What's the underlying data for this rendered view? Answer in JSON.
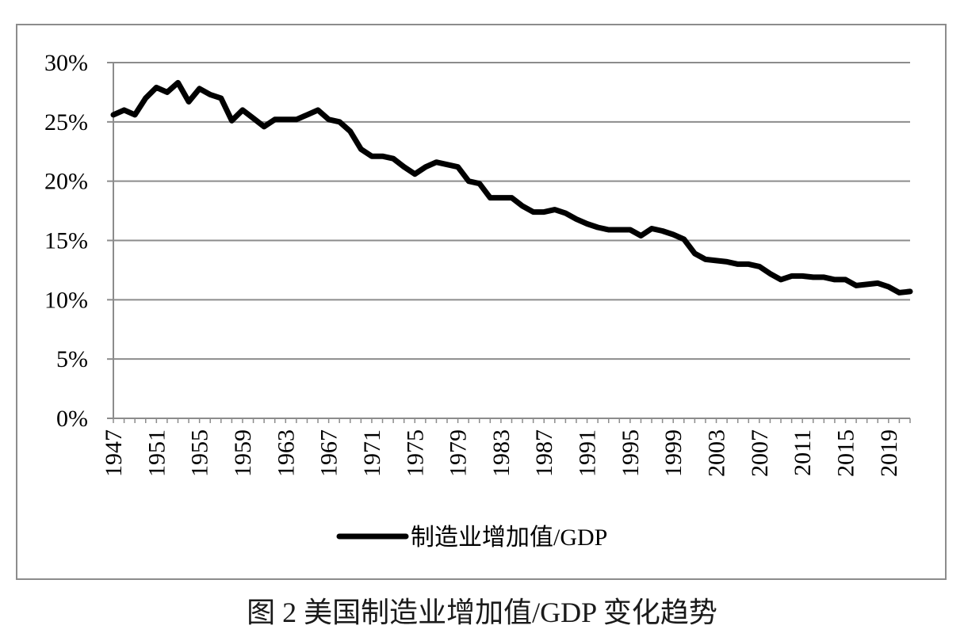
{
  "caption": "图 2  美国制造业增加值/GDP 变化趋势",
  "chart_data": {
    "type": "line",
    "title": "",
    "xlabel": "",
    "ylabel": "",
    "ylim": [
      0,
      30
    ],
    "y_ticks": [
      0,
      5,
      10,
      15,
      20,
      25,
      30
    ],
    "y_tick_labels": [
      "0%",
      "5%",
      "10%",
      "15%",
      "20%",
      "25%",
      "30%"
    ],
    "x_tick_labels": [
      "1947",
      "1951",
      "1955",
      "1959",
      "1963",
      "1967",
      "1971",
      "1975",
      "1979",
      "1983",
      "1987",
      "1991",
      "1995",
      "1999",
      "2003",
      "2007",
      "2011",
      "2015",
      "2019"
    ],
    "x_range": [
      1947,
      2021
    ],
    "grid": true,
    "legend_position": "bottom",
    "series": [
      {
        "name": "制造业增加值/GDP",
        "color": "#000000",
        "x": [
          1947,
          1948,
          1949,
          1950,
          1951,
          1952,
          1953,
          1954,
          1955,
          1956,
          1957,
          1958,
          1959,
          1960,
          1961,
          1962,
          1963,
          1964,
          1965,
          1966,
          1967,
          1968,
          1969,
          1970,
          1971,
          1972,
          1973,
          1974,
          1975,
          1976,
          1977,
          1978,
          1979,
          1980,
          1981,
          1982,
          1983,
          1984,
          1985,
          1986,
          1987,
          1988,
          1989,
          1990,
          1991,
          1992,
          1993,
          1994,
          1995,
          1996,
          1997,
          1998,
          1999,
          2000,
          2001,
          2002,
          2003,
          2004,
          2005,
          2006,
          2007,
          2008,
          2009,
          2010,
          2011,
          2012,
          2013,
          2014,
          2015,
          2016,
          2017,
          2018,
          2019,
          2020,
          2021
        ],
        "values": [
          25.6,
          26.0,
          25.6,
          27.0,
          27.9,
          27.5,
          28.3,
          26.7,
          27.8,
          27.3,
          27.0,
          25.1,
          26.0,
          25.3,
          24.6,
          25.2,
          25.2,
          25.2,
          25.6,
          26.0,
          25.2,
          25.0,
          24.2,
          22.7,
          22.1,
          22.1,
          21.9,
          21.2,
          20.6,
          21.2,
          21.6,
          21.4,
          21.2,
          20.0,
          19.8,
          18.6,
          18.6,
          18.6,
          17.9,
          17.4,
          17.4,
          17.6,
          17.3,
          16.8,
          16.4,
          16.1,
          15.9,
          15.9,
          15.9,
          15.4,
          16.0,
          15.8,
          15.5,
          15.1,
          13.9,
          13.4,
          13.3,
          13.2,
          13.0,
          13.0,
          12.8,
          12.2,
          11.7,
          12.0,
          12.0,
          11.9,
          11.9,
          11.7,
          11.7,
          11.2,
          11.3,
          11.4,
          11.1,
          10.6,
          10.7
        ]
      }
    ]
  }
}
